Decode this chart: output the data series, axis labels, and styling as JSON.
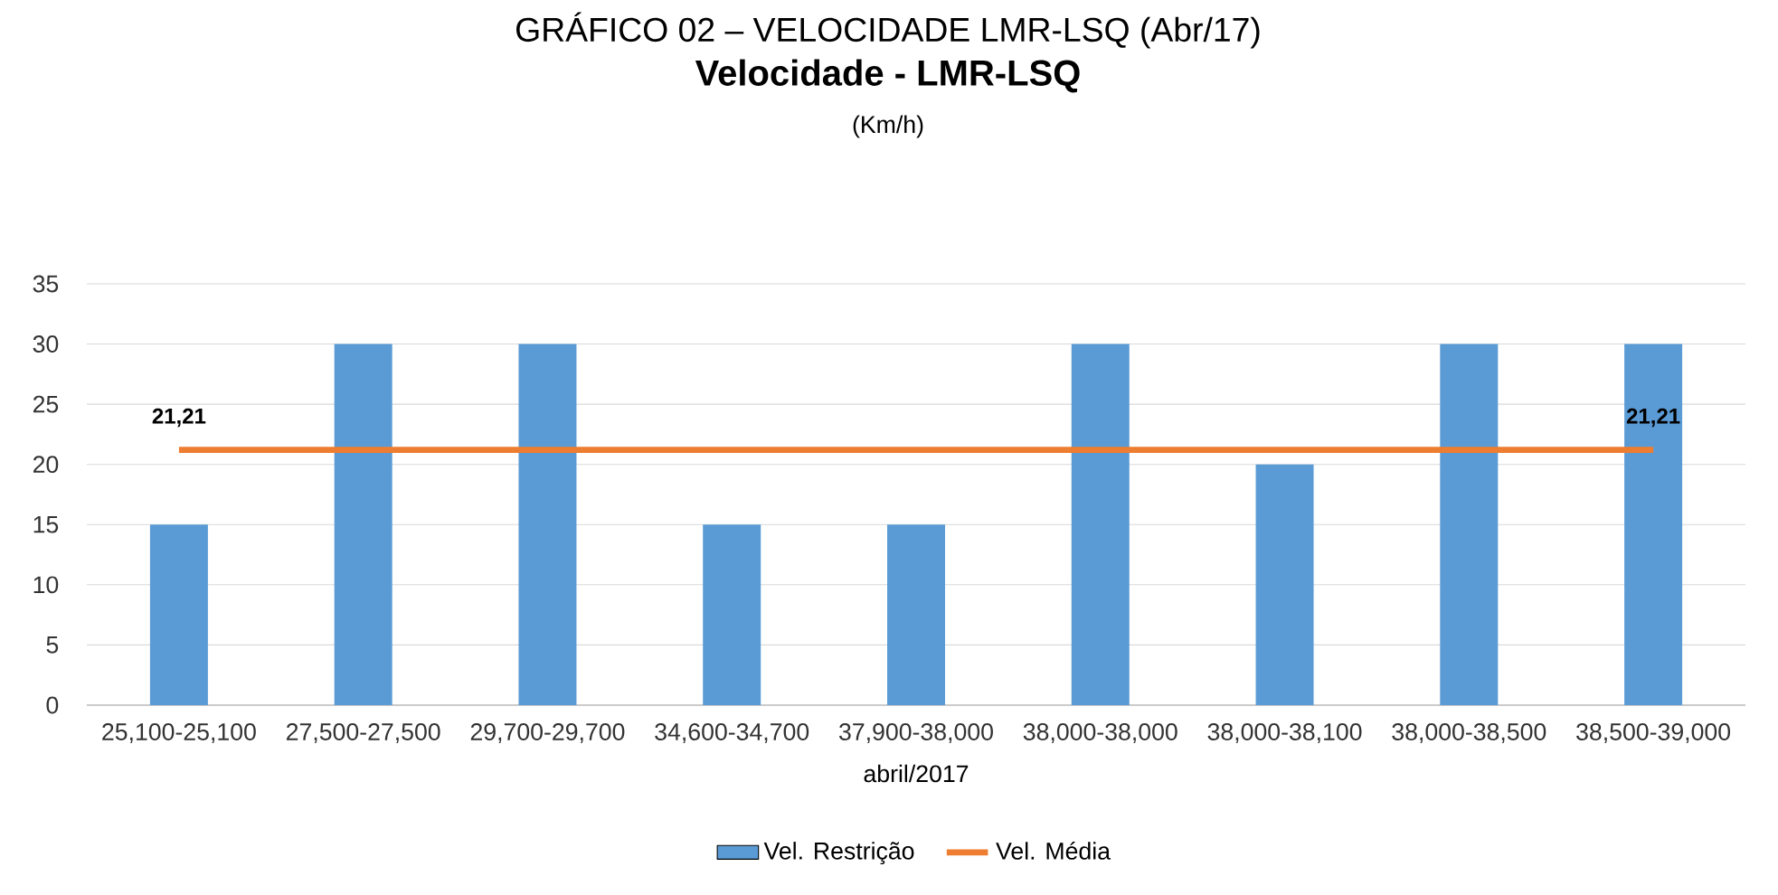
{
  "chart_data": {
    "type": "bar",
    "title": "Velocidade - LMR-LSQ",
    "subtitle": "(Km/h)",
    "xlabel": "abril/2017",
    "annotations": [
      "GRÁFICO 02 – VELOCIDADE LMR-LSQ (Abr/17)"
    ],
    "categories": [
      "25,100-25,100",
      "27,500-27,500",
      "29,700-29,700",
      "34,600-34,700",
      "37,900-38,000",
      "38,000-38,000",
      "38,000-38,100",
      "38,000-38,500",
      "38,500-39,000"
    ],
    "series": [
      {
        "name": "Vel. Restrição",
        "color": "#5b9bd5",
        "values": [
          15,
          30,
          30,
          15,
          15,
          30,
          20,
          30,
          30
        ]
      },
      {
        "name": "Vel. Média",
        "type": "line",
        "color": "#ed7d31",
        "values": [
          21.21,
          21.21,
          21.21,
          21.21,
          21.21,
          21.21,
          21.21,
          21.21,
          21.21
        ],
        "value_labels": [
          "21,21",
          null,
          null,
          null,
          null,
          null,
          null,
          null,
          "21,21"
        ]
      }
    ],
    "ylim": [
      0,
      35
    ],
    "yticks": [
      0,
      5,
      10,
      15,
      20,
      25,
      30,
      35
    ],
    "grid": "y",
    "legend": "bottom"
  }
}
